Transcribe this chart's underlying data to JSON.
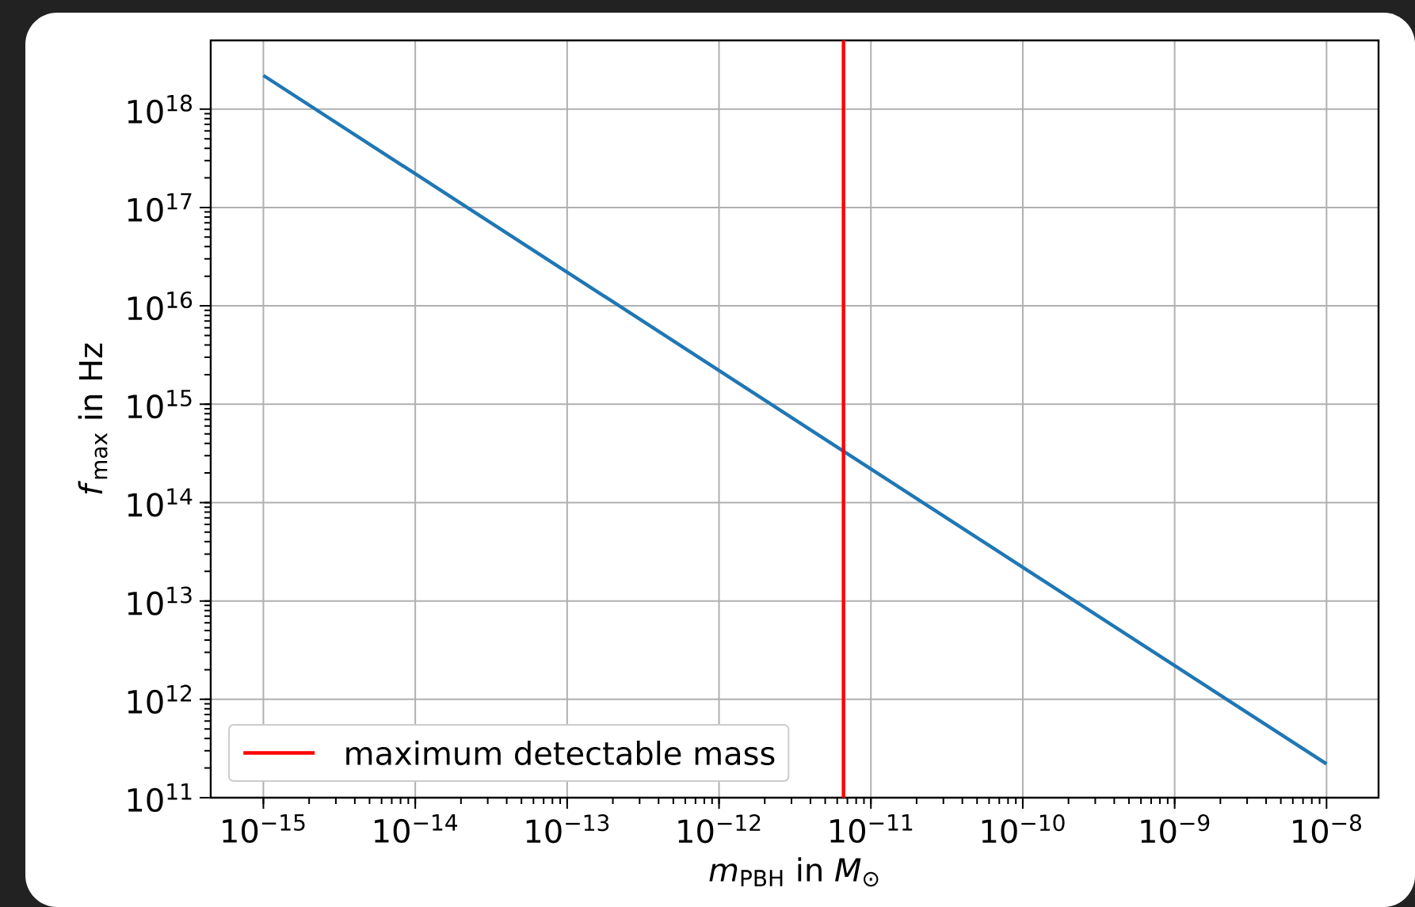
{
  "chart_data": {
    "type": "line",
    "xlabel": "*m*$_{PBH}$ in *M*$_{⊙}$",
    "ylabel": "*f*$_{max}$ in Hz",
    "log": "xy",
    "grid": true,
    "legend": "bottom left",
    "x": [
      1e-15,
      1e-08
    ],
    "series": [
      {
        "color": "#1f77b4",
        "values": [
          2.2e+18,
          220000000000.0
        ]
      }
    ],
    "ref_lines": [
      {
        "axis": "x",
        "value": 6.6e-12,
        "label": "maximum detectable mass",
        "color": "#ff0000"
      }
    ],
    "xlim": [
      4.5e-16,
      2.2e-08
    ],
    "ylim": [
      100000000000.0,
      5e+18
    ],
    "xticks": [
      {
        "value": 1e-15,
        "label": "10$^{−15}$"
      },
      {
        "value": 1e-14,
        "label": "10$^{−14}$"
      },
      {
        "value": 1e-13,
        "label": "10$^{−13}$"
      },
      {
        "value": 1e-12,
        "label": "10$^{−12}$"
      },
      {
        "value": 1e-11,
        "label": "10$^{−11}$"
      },
      {
        "value": 1e-10,
        "label": "10$^{−10}$"
      },
      {
        "value": 1e-09,
        "label": "10$^{−9}$"
      },
      {
        "value": 1e-08,
        "label": "10$^{−8}$"
      }
    ],
    "yticks": [
      {
        "value": 100000000000.0,
        "label": "10$^{11}$"
      },
      {
        "value": 1000000000000.0,
        "label": "10$^{12}$"
      },
      {
        "value": 10000000000000.0,
        "label": "10$^{13}$"
      },
      {
        "value": 100000000000000.0,
        "label": "10$^{14}$"
      },
      {
        "value": 1000000000000000.0,
        "label": "10$^{15}$"
      },
      {
        "value": 1e+16,
        "label": "10$^{16}$"
      },
      {
        "value": 1e+17,
        "label": "10$^{17}$"
      },
      {
        "value": 1e+18,
        "label": "10$^{18}$"
      }
    ]
  }
}
